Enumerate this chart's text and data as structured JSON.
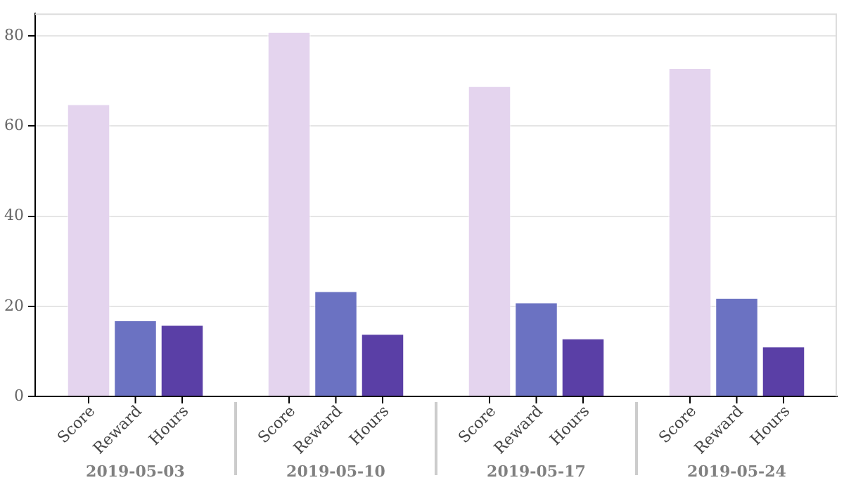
{
  "chart_data": {
    "type": "bar",
    "categories": [
      "2019-05-03",
      "2019-05-10",
      "2019-05-17",
      "2019-05-24"
    ],
    "series": [
      {
        "name": "Score",
        "color": "#e4d4ee",
        "values": [
          65,
          81,
          69,
          73
        ]
      },
      {
        "name": "Reward",
        "color": "#6b72c2",
        "values": [
          17,
          23.5,
          21,
          22
        ]
      },
      {
        "name": "Hours",
        "color": "#5a3fa6",
        "values": [
          16,
          14,
          13,
          11.2
        ]
      }
    ],
    "ylim": [
      0,
      85
    ],
    "yticks": [
      0,
      20,
      40,
      60,
      80
    ],
    "grid": "y",
    "legend": false
  }
}
